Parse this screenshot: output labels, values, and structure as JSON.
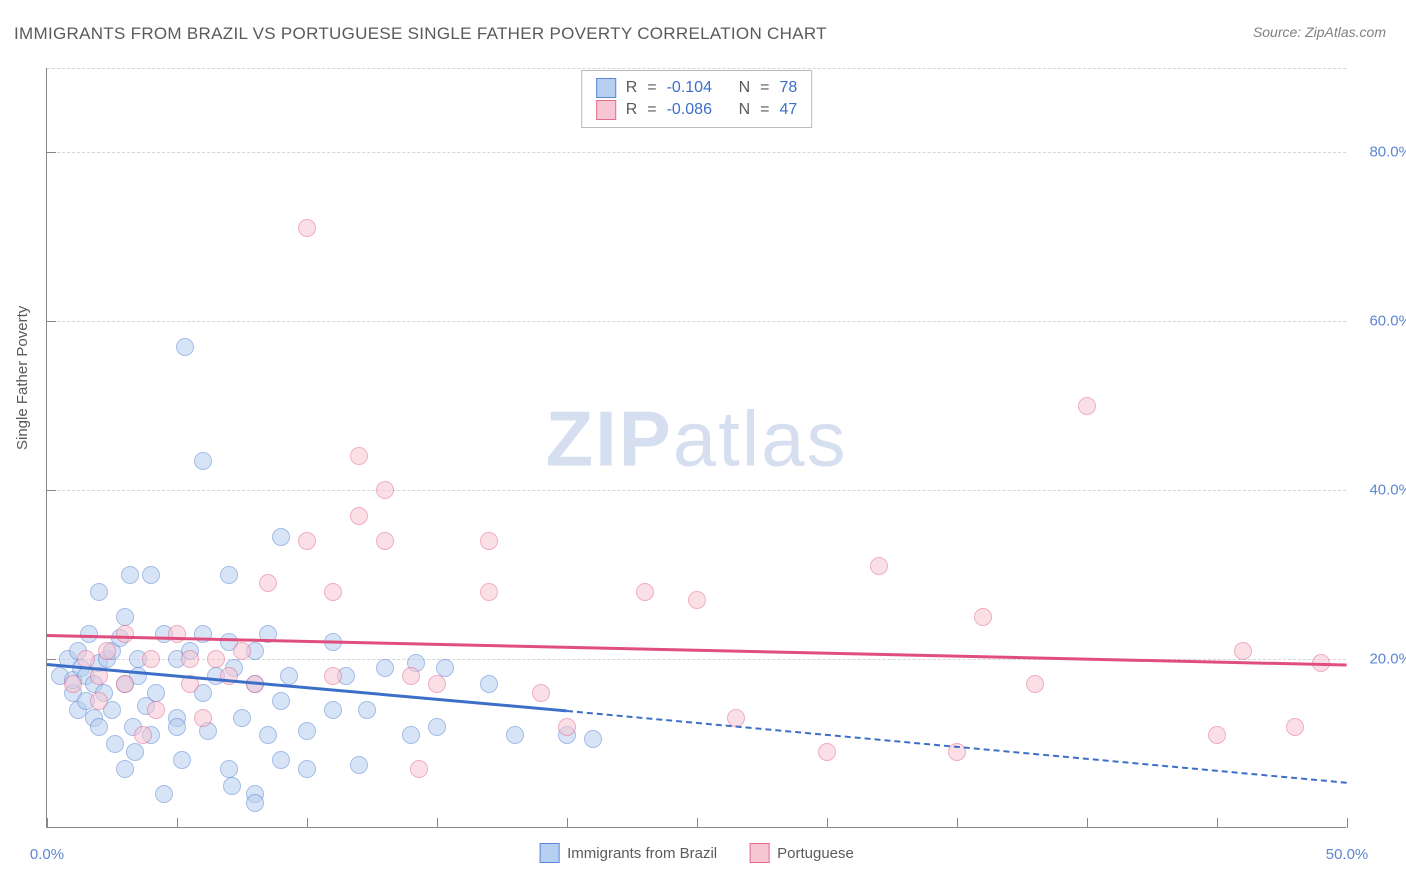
{
  "title": "IMMIGRANTS FROM BRAZIL VS PORTUGUESE SINGLE FATHER POVERTY CORRELATION CHART",
  "source": "Source: ZipAtlas.com",
  "watermark_bold": "ZIP",
  "watermark_rest": "atlas",
  "chart": {
    "type": "scatter",
    "xlim": [
      0,
      50
    ],
    "ylim": [
      0,
      90
    ],
    "axis_title_y": "Single Father Poverty",
    "x_tick_positions": [
      0,
      5,
      10,
      15,
      20,
      25,
      30,
      35,
      40,
      45,
      50
    ],
    "x_tick_labels": {
      "0": "0.0%",
      "50": "50.0%"
    },
    "y_tick_positions": [
      20,
      40,
      60,
      80
    ],
    "y_tick_labels": {
      "20": "20.0%",
      "40": "40.0%",
      "60": "60.0%",
      "80": "80.0%"
    },
    "gridline_positions": [
      20,
      40,
      60,
      80,
      90
    ],
    "background_color": "#ffffff",
    "grid_color": "#d5d5d5",
    "marker_radius": 9,
    "series": [
      {
        "name": "Immigrants from Brazil",
        "fill_color": "#b7cff0",
        "stroke_color": "#5d86d6",
        "fill_opacity": 0.55,
        "R": "-0.104",
        "N": "78",
        "trend": {
          "x1": 0,
          "y1": 19.5,
          "x2": 20,
          "y2": 14.0,
          "dash_to_x": 50,
          "dash_to_y": 5.5,
          "color": "#3d6fc9"
        },
        "points": [
          [
            0.5,
            18
          ],
          [
            0.8,
            20
          ],
          [
            1,
            16
          ],
          [
            1,
            17.5
          ],
          [
            1.2,
            21
          ],
          [
            1.2,
            14
          ],
          [
            1.3,
            19
          ],
          [
            1.5,
            18
          ],
          [
            1.5,
            15
          ],
          [
            1.6,
            23
          ],
          [
            1.8,
            17
          ],
          [
            1.8,
            13
          ],
          [
            2,
            19.5
          ],
          [
            2,
            12
          ],
          [
            2,
            28
          ],
          [
            2.2,
            16
          ],
          [
            2.3,
            20
          ],
          [
            2.5,
            14
          ],
          [
            2.5,
            21
          ],
          [
            2.6,
            10
          ],
          [
            2.8,
            22.5
          ],
          [
            3,
            17
          ],
          [
            3,
            25
          ],
          [
            3,
            7
          ],
          [
            3.2,
            30
          ],
          [
            3.3,
            12
          ],
          [
            3.4,
            9
          ],
          [
            3.5,
            18
          ],
          [
            3.5,
            20
          ],
          [
            3.8,
            14.5
          ],
          [
            4,
            11
          ],
          [
            4,
            30
          ],
          [
            4.2,
            16
          ],
          [
            4.5,
            23
          ],
          [
            4.5,
            4
          ],
          [
            5,
            20
          ],
          [
            5,
            13
          ],
          [
            5,
            12
          ],
          [
            5.2,
            8
          ],
          [
            5.3,
            57
          ],
          [
            5.5,
            21
          ],
          [
            6,
            16
          ],
          [
            6,
            23
          ],
          [
            6,
            43.5
          ],
          [
            6.2,
            11.5
          ],
          [
            6.5,
            18
          ],
          [
            7,
            7
          ],
          [
            7,
            22
          ],
          [
            7,
            30
          ],
          [
            7.1,
            5
          ],
          [
            7.2,
            19
          ],
          [
            7.5,
            13
          ],
          [
            8,
            4
          ],
          [
            8,
            3
          ],
          [
            8,
            17
          ],
          [
            8,
            21
          ],
          [
            8.5,
            11
          ],
          [
            8.5,
            23
          ],
          [
            9,
            15
          ],
          [
            9,
            8
          ],
          [
            9,
            34.5
          ],
          [
            9.3,
            18
          ],
          [
            10,
            11.5
          ],
          [
            10,
            7
          ],
          [
            11,
            14
          ],
          [
            11,
            22
          ],
          [
            11.5,
            18
          ],
          [
            12,
            7.5
          ],
          [
            12.3,
            14
          ],
          [
            13,
            19
          ],
          [
            14,
            11
          ],
          [
            14.2,
            19.5
          ],
          [
            15,
            12
          ],
          [
            15.3,
            19
          ],
          [
            17,
            17
          ],
          [
            18,
            11
          ],
          [
            20,
            11
          ],
          [
            21,
            10.5
          ]
        ]
      },
      {
        "name": "Portuguese",
        "fill_color": "#f6c6d4",
        "stroke_color": "#e56b8e",
        "fill_opacity": 0.55,
        "R": "-0.086",
        "N": "47",
        "trend": {
          "x1": 0,
          "y1": 23.0,
          "x2": 50,
          "y2": 19.5,
          "color": "#e04e7f"
        },
        "points": [
          [
            1,
            17
          ],
          [
            1.5,
            20
          ],
          [
            2,
            15
          ],
          [
            2,
            18
          ],
          [
            2.3,
            21
          ],
          [
            3,
            23
          ],
          [
            3,
            17
          ],
          [
            3.7,
            11
          ],
          [
            4,
            20
          ],
          [
            4.2,
            14
          ],
          [
            5,
            23
          ],
          [
            5.5,
            20
          ],
          [
            5.5,
            17
          ],
          [
            6,
            13
          ],
          [
            6.5,
            20
          ],
          [
            7,
            18
          ],
          [
            7.5,
            21
          ],
          [
            8,
            17
          ],
          [
            8.5,
            29
          ],
          [
            10,
            34
          ],
          [
            10,
            71
          ],
          [
            11,
            28
          ],
          [
            11,
            18
          ],
          [
            12,
            44
          ],
          [
            12,
            37
          ],
          [
            13,
            40
          ],
          [
            13,
            34
          ],
          [
            14,
            18
          ],
          [
            14.3,
            7
          ],
          [
            15,
            17
          ],
          [
            17,
            34
          ],
          [
            17,
            28
          ],
          [
            19,
            16
          ],
          [
            20,
            12
          ],
          [
            23,
            28
          ],
          [
            25,
            27
          ],
          [
            26.5,
            13
          ],
          [
            30,
            9
          ],
          [
            32,
            31
          ],
          [
            35,
            9
          ],
          [
            36,
            25
          ],
          [
            38,
            17
          ],
          [
            40,
            50
          ],
          [
            45,
            11
          ],
          [
            46,
            21
          ],
          [
            48,
            12
          ],
          [
            49,
            19.5
          ]
        ]
      }
    ]
  },
  "legend_top_cols": {
    "r_label": "R",
    "n_label": "N",
    "eq": "="
  },
  "colors": {
    "title_text": "#5a5a5a",
    "axis_label": "#5d86d6",
    "value_blue": "#3d6fc9",
    "source_text": "#808080"
  }
}
